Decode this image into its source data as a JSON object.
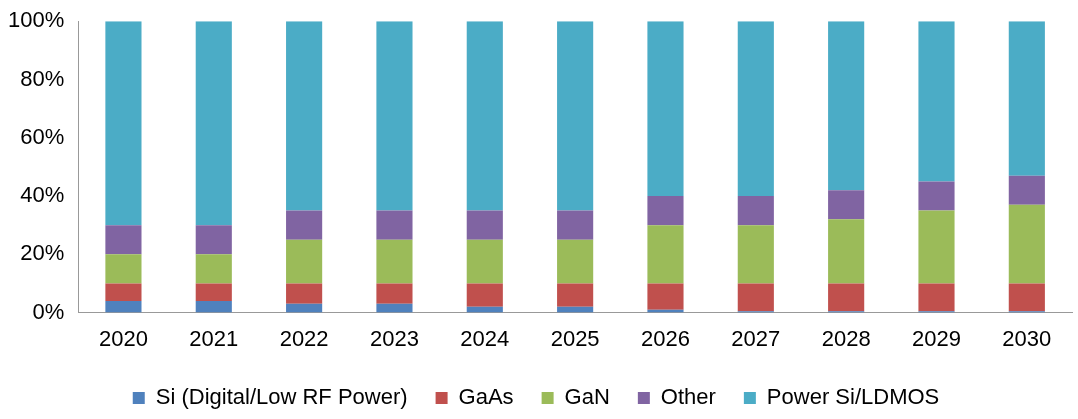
{
  "chart_data": {
    "type": "bar",
    "stacked": true,
    "categories": [
      "2020",
      "2021",
      "2022",
      "2023",
      "2024",
      "2025",
      "2026",
      "2027",
      "2028",
      "2029",
      "2030"
    ],
    "series": [
      {
        "name": "Si (Digital/Low RF Power)",
        "color": "#4f81bd",
        "values": [
          4,
          4,
          3,
          3,
          2,
          2,
          1,
          0.5,
          0.5,
          0.5,
          0.5
        ]
      },
      {
        "name": "GaAs",
        "color": "#c0504d",
        "values": [
          6,
          6,
          7,
          7,
          8,
          8,
          9,
          9.5,
          9.5,
          9.5,
          9.5
        ]
      },
      {
        "name": "GaN",
        "color": "#9bbb59",
        "values": [
          10,
          10,
          15,
          15,
          15,
          15,
          20,
          20,
          22,
          25,
          27
        ]
      },
      {
        "name": "Other",
        "color": "#8064a2",
        "values": [
          10,
          10,
          10,
          10,
          10,
          10,
          10,
          10,
          10,
          10,
          10
        ]
      },
      {
        "name": "Power Si/LDMOS",
        "color": "#4bacc6",
        "values": [
          70,
          70,
          65,
          65,
          65,
          65,
          60,
          60,
          58,
          55,
          53
        ]
      }
    ],
    "ylim": [
      0,
      100
    ],
    "yticks": [
      {
        "value": 0,
        "label": "0%"
      },
      {
        "value": 20,
        "label": "20%"
      },
      {
        "value": 40,
        "label": "40%"
      },
      {
        "value": 60,
        "label": "60%"
      },
      {
        "value": 80,
        "label": "80%"
      },
      {
        "value": 100,
        "label": "100%"
      }
    ],
    "grid": false,
    "legend": "bottom"
  }
}
